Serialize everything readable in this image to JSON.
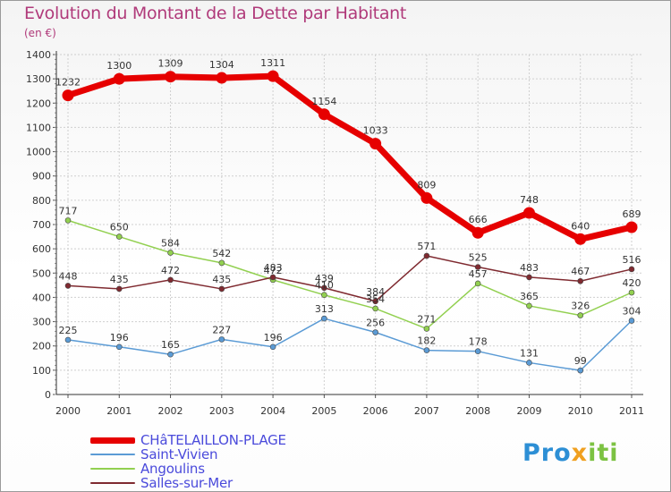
{
  "title": "Evolution du Montant de la Dette par Habitant",
  "unit": "(en €)",
  "logo": {
    "part1": "Pro",
    "part2": "x",
    "part3": "iti"
  },
  "colors": {
    "title": "#b03a7a",
    "legend_text": "#4a4adb"
  },
  "chart_data": {
    "type": "line",
    "title": "Evolution du Montant de la Dette par Habitant",
    "ylabel": "(en €)",
    "xlabel": "",
    "x": [
      "2000",
      "2001",
      "2002",
      "2003",
      "2004",
      "2005",
      "2006",
      "2007",
      "2008",
      "2009",
      "2010",
      "2011"
    ],
    "ylim": [
      0,
      1400
    ],
    "yticks": [
      0,
      100,
      200,
      300,
      400,
      500,
      600,
      700,
      800,
      900,
      1000,
      1100,
      1200,
      1300,
      1400
    ],
    "grid": true,
    "legend_position": "bottom-left",
    "series": [
      {
        "name": "CHâTELAILLON-PLAGE",
        "color": "#e60000",
        "width": 7,
        "values": [
          1232,
          1300,
          1309,
          1304,
          1311,
          1154,
          1033,
          809,
          666,
          748,
          640,
          689
        ]
      },
      {
        "name": "Saint-Vivien",
        "color": "#5b9bd5",
        "width": 1.5,
        "values": [
          225,
          196,
          165,
          227,
          196,
          313,
          256,
          182,
          178,
          131,
          99,
          304
        ]
      },
      {
        "name": "Angoulins",
        "color": "#92d050",
        "width": 1.5,
        "values": [
          717,
          650,
          584,
          542,
          472,
          410,
          354,
          271,
          457,
          365,
          326,
          420
        ]
      },
      {
        "name": "Salles-sur-Mer",
        "color": "#7f2a30",
        "width": 1.5,
        "values": [
          448,
          435,
          472,
          435,
          483,
          439,
          384,
          571,
          525,
          483,
          467,
          516
        ]
      }
    ]
  }
}
